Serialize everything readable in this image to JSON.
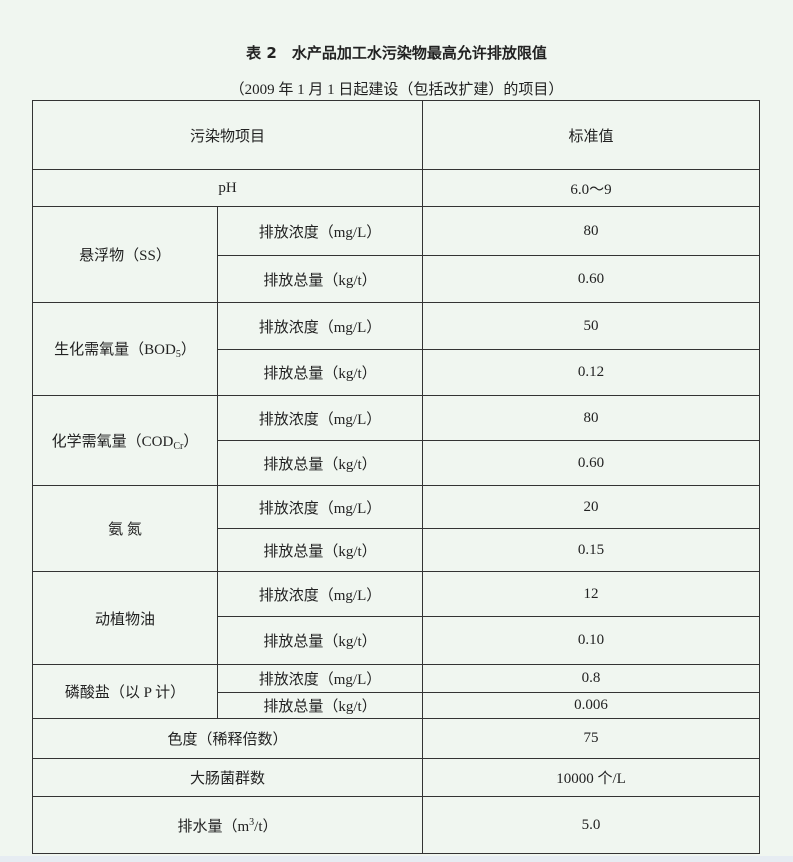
{
  "title": "表 2　水产品加工水污染物最高允许排放限值",
  "subtitle": "（2009 年 1 月 1 日起建设（包括改扩建）的项目）",
  "header": {
    "item": "污染物项目",
    "value": "标准值"
  },
  "labels": {
    "conc": "排放浓度（mg/L）",
    "total": "排放总量（kg/t）"
  },
  "rows": {
    "ph": {
      "name": "pH",
      "value": "6.0～9"
    },
    "ss": {
      "name": "悬浮物（SS）",
      "conc": "80",
      "total": "0.60"
    },
    "bod": {
      "name": "生化需氧量（BOD",
      "sub": "5",
      "close": "）",
      "conc": "50",
      "total": "0.12"
    },
    "cod": {
      "name": "化学需氧量（COD",
      "sub": "Cr",
      "close": "）",
      "conc": "80",
      "total": "0.60"
    },
    "nh": {
      "name": "氨 氮",
      "conc": "20",
      "total": "0.15"
    },
    "oil": {
      "name": "动植物油",
      "conc": "12",
      "total": "0.10"
    },
    "p": {
      "name": "磷酸盐（以 P 计）",
      "conc": "0.8",
      "total": "0.006"
    },
    "color": {
      "name": "色度（稀释倍数）",
      "value": "75"
    },
    "coli": {
      "name": "大肠菌群数",
      "value": "10000 个/L"
    },
    "drain": {
      "name": "排水量（m",
      "sup": "3",
      "close": "/t）",
      "value": "5.0"
    }
  }
}
